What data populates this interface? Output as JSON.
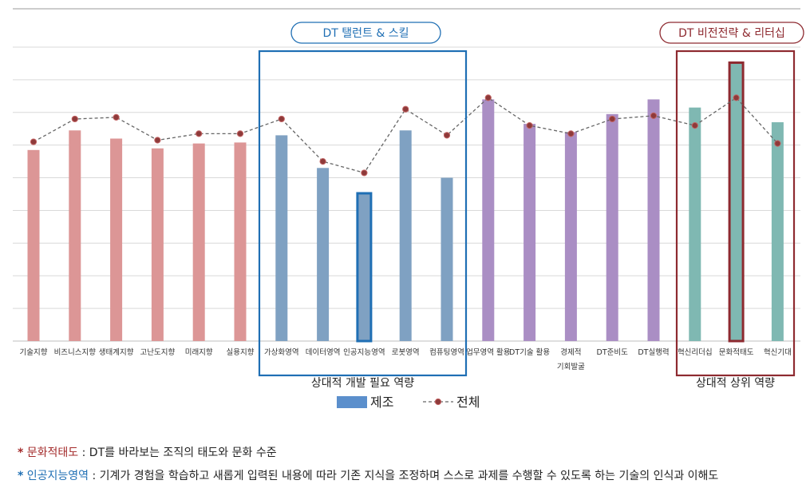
{
  "chart_data": {
    "type": "bar",
    "categories": [
      "기술지향",
      "비즈니스지향",
      "생태계지향",
      "고난도지향",
      "미래지향",
      "실용지향",
      "가상화영역",
      "데이터영역",
      "인공지능영역",
      "로봇영역",
      "컴퓨팅영역",
      "업무영역 활용",
      "DT기술 활용",
      "경제적 기회발굴",
      "DT준비도",
      "DT실행력",
      "혁신리더십",
      "문화적태도",
      "혁신기대"
    ],
    "category_lines": [
      [
        "기술지향"
      ],
      [
        "비즈니스지향"
      ],
      [
        "생태계지향"
      ],
      [
        "고난도지향"
      ],
      [
        "미래지향"
      ],
      [
        "실용지향"
      ],
      [
        "가상화영역"
      ],
      [
        "데이터영역"
      ],
      [
        "인공지능영역"
      ],
      [
        "로봇영역"
      ],
      [
        "컴퓨팅영역"
      ],
      [
        "업무영역 활용"
      ],
      [
        "DT기술 활용"
      ],
      [
        "경제적",
        "기회발굴"
      ],
      [
        "DT준비도"
      ],
      [
        "DT실행력"
      ],
      [
        "혁신리더십"
      ],
      [
        "문화적태도"
      ],
      [
        "혁신기대"
      ]
    ],
    "series": [
      {
        "name": "제조",
        "type": "bar",
        "values": [
          5.85,
          6.45,
          6.2,
          5.9,
          6.05,
          6.08,
          6.3,
          5.3,
          4.5,
          6.45,
          5.0,
          7.4,
          6.65,
          6.4,
          6.95,
          7.4,
          7.15,
          8.5,
          6.7
        ]
      },
      {
        "name": "전체",
        "type": "line",
        "values": [
          6.1,
          6.8,
          6.85,
          6.15,
          6.35,
          6.35,
          6.8,
          5.5,
          5.15,
          7.1,
          6.3,
          7.45,
          6.6,
          6.35,
          6.8,
          6.9,
          6.6,
          7.45,
          6.05
        ]
      }
    ],
    "bar_colors": [
      "#dc9696",
      "#dc9696",
      "#dc9696",
      "#dc9696",
      "#dc9696",
      "#dc9696",
      "#7fa1c2",
      "#7fa1c2",
      "#7fa1c2",
      "#7fa1c2",
      "#7fa1c2",
      "#aa8ec4",
      "#aa8ec4",
      "#aa8ec4",
      "#aa8ec4",
      "#aa8ec4",
      "#7fb8b2",
      "#7fb8b2",
      "#7fb8b2"
    ],
    "highlight": [
      {
        "index": 8,
        "color": "#1f6fb4"
      },
      {
        "index": 17,
        "color": "#8e2a30"
      }
    ],
    "ylim": [
      0,
      9
    ],
    "ytick_step": 1,
    "group_boxes": [
      {
        "label": "DT 탤런트 & 스킬",
        "caption": "상대적 개발 필요 역량",
        "start": 6,
        "end": 10,
        "color": "#1f6fb4"
      },
      {
        "label": "DT 비전전략 & 리터십",
        "caption": "상대적 상위 역량",
        "start": 16,
        "end": 18,
        "color": "#8e2a30"
      }
    ],
    "legend": [
      {
        "label": "제조",
        "kind": "bar",
        "color": "#5b8fcc"
      },
      {
        "label": "전체",
        "kind": "line",
        "color": "#8e3a3a"
      }
    ],
    "line_color": "#666666",
    "marker_color": "#8e3a3a",
    "marker_edge": "#c26262"
  },
  "notes": [
    {
      "star": "*",
      "key": "문화적태도",
      "text": " : DT를 바라보는 조직의 태도와 문화 수준",
      "color": "#a32a2a"
    },
    {
      "star": "*",
      "key": "인공지능영역",
      "text": " : 기계가 경험을 학습하고 새롭게 입력된 내용에 따라 기존 지식을 조정하며 스스로 과제를 수행할 수 있도록 하는 기술의 인식과 이해도",
      "color": "#1f6fb4"
    }
  ]
}
